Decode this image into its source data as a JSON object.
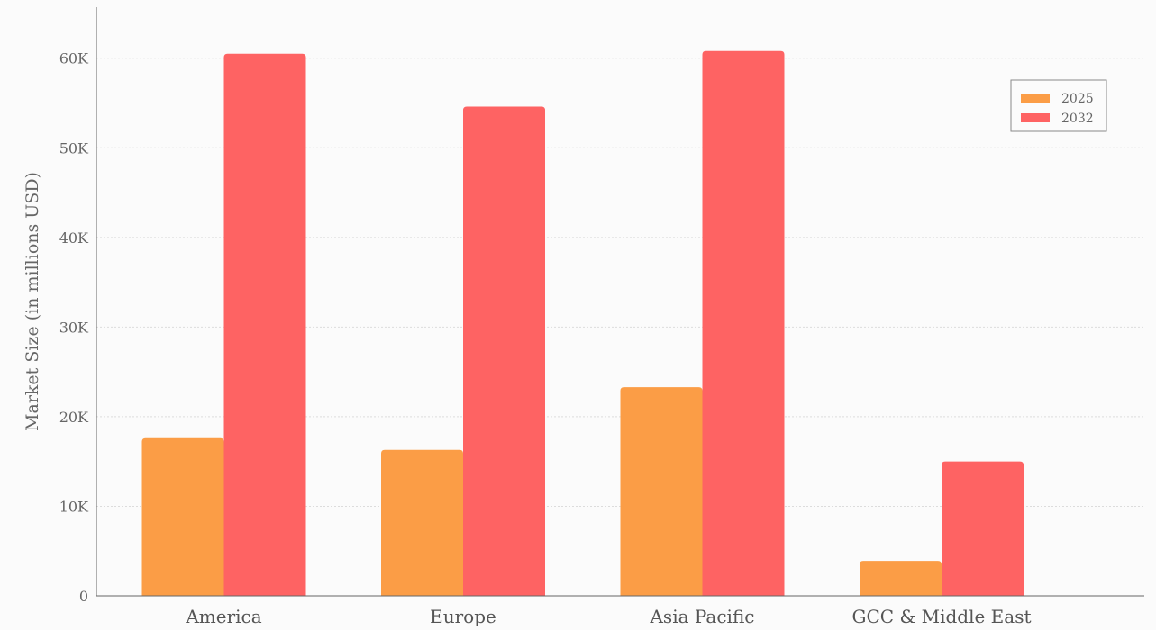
{
  "chart_data": {
    "type": "bar",
    "title": "",
    "xlabel": "",
    "ylabel": "Market Size  (in millions USD)",
    "categories": [
      "America",
      "Europe",
      "Asia Pacific",
      "GCC & Middle East"
    ],
    "series": [
      {
        "name": "2025",
        "color": "#fb9d46",
        "values": [
          17600,
          16300,
          23300,
          3900
        ]
      },
      {
        "name": "2032",
        "color": "#fe6363",
        "values": [
          60500,
          54600,
          60800,
          15000
        ]
      }
    ],
    "ylim": [
      0,
      65700
    ],
    "yticks": [
      0,
      10000,
      20000,
      30000,
      40000,
      50000,
      60000
    ],
    "ytick_labels": [
      "0",
      "10K",
      "20K",
      "30K",
      "40K",
      "50K",
      "60K"
    ],
    "grid": true,
    "legend_position": "top-right"
  }
}
